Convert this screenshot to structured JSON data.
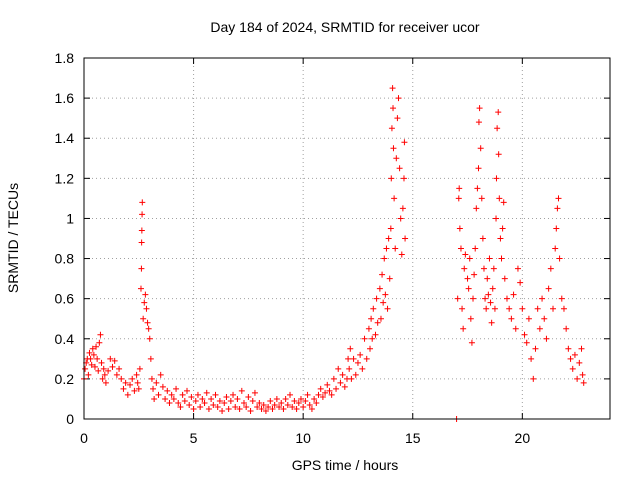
{
  "chart_data": {
    "type": "scatter",
    "title": "Day 184 of 2024, SRMTID for receiver ucor",
    "xlabel": "GPS time / hours",
    "ylabel": "SRMTID / TECUs",
    "xlim": [
      0,
      24
    ],
    "ylim": [
      0,
      1.8
    ],
    "xticks": [
      0,
      5,
      10,
      15,
      20
    ],
    "xtick_labels": [
      "0",
      "5",
      "10",
      "15",
      "20"
    ],
    "yticks": [
      0,
      0.2,
      0.4,
      0.6,
      0.8,
      1,
      1.2,
      1.4,
      1.6,
      1.8
    ],
    "ytick_labels": [
      "0",
      "0.2",
      "0.4",
      "0.6",
      "0.8",
      "1",
      "1.2",
      "1.4",
      "1.6",
      "1.8"
    ],
    "grid": true,
    "marker": "+",
    "series": [
      {
        "name": "SRMTID",
        "color": "#ff0000",
        "points": [
          [
            0.0,
            0.2
          ],
          [
            0.05,
            0.25
          ],
          [
            0.1,
            0.28
          ],
          [
            0.15,
            0.3
          ],
          [
            0.2,
            0.22
          ],
          [
            0.25,
            0.33
          ],
          [
            0.3,
            0.3
          ],
          [
            0.35,
            0.27
          ],
          [
            0.4,
            0.35
          ],
          [
            0.45,
            0.32
          ],
          [
            0.5,
            0.26
          ],
          [
            0.55,
            0.36
          ],
          [
            0.6,
            0.3
          ],
          [
            0.65,
            0.24
          ],
          [
            0.7,
            0.38
          ],
          [
            0.75,
            0.42
          ],
          [
            0.8,
            0.28
          ],
          [
            0.85,
            0.2
          ],
          [
            0.9,
            0.25
          ],
          [
            0.95,
            0.22
          ],
          [
            1.0,
            0.18
          ],
          [
            1.1,
            0.24
          ],
          [
            1.2,
            0.3
          ],
          [
            1.3,
            0.26
          ],
          [
            1.4,
            0.29
          ],
          [
            1.5,
            0.22
          ],
          [
            1.6,
            0.25
          ],
          [
            1.7,
            0.2
          ],
          [
            1.8,
            0.15
          ],
          [
            1.9,
            0.18
          ],
          [
            2.0,
            0.12
          ],
          [
            2.1,
            0.17
          ],
          [
            2.2,
            0.2
          ],
          [
            2.3,
            0.14
          ],
          [
            2.4,
            0.22
          ],
          [
            2.45,
            0.18
          ],
          [
            2.5,
            0.15
          ],
          [
            2.55,
            0.25
          ],
          [
            2.6,
            0.65
          ],
          [
            2.62,
            0.75
          ],
          [
            2.63,
            0.88
          ],
          [
            2.64,
            0.94
          ],
          [
            2.65,
            1.02
          ],
          [
            2.66,
            1.08
          ],
          [
            2.7,
            0.5
          ],
          [
            2.75,
            0.58
          ],
          [
            2.8,
            0.62
          ],
          [
            2.85,
            0.55
          ],
          [
            2.9,
            0.48
          ],
          [
            2.95,
            0.45
          ],
          [
            3.0,
            0.4
          ],
          [
            3.05,
            0.3
          ],
          [
            3.1,
            0.2
          ],
          [
            3.15,
            0.15
          ],
          [
            3.2,
            0.1
          ],
          [
            3.3,
            0.18
          ],
          [
            3.4,
            0.12
          ],
          [
            3.5,
            0.22
          ],
          [
            3.6,
            0.16
          ],
          [
            3.7,
            0.1
          ],
          [
            3.8,
            0.14
          ],
          [
            3.9,
            0.08
          ],
          [
            4.0,
            0.12
          ],
          [
            4.1,
            0.1
          ],
          [
            4.2,
            0.15
          ],
          [
            4.3,
            0.08
          ],
          [
            4.4,
            0.06
          ],
          [
            4.5,
            0.12
          ],
          [
            4.6,
            0.09
          ],
          [
            4.7,
            0.14
          ],
          [
            4.8,
            0.07
          ],
          [
            4.9,
            0.11
          ],
          [
            5.0,
            0.05
          ],
          [
            5.1,
            0.09
          ],
          [
            5.2,
            0.12
          ],
          [
            5.3,
            0.06
          ],
          [
            5.4,
            0.1
          ],
          [
            5.5,
            0.08
          ],
          [
            5.6,
            0.13
          ],
          [
            5.7,
            0.05
          ],
          [
            5.8,
            0.1
          ],
          [
            5.9,
            0.07
          ],
          [
            6.0,
            0.12
          ],
          [
            6.1,
            0.06
          ],
          [
            6.2,
            0.09
          ],
          [
            6.3,
            0.04
          ],
          [
            6.4,
            0.08
          ],
          [
            6.5,
            0.11
          ],
          [
            6.6,
            0.05
          ],
          [
            6.7,
            0.09
          ],
          [
            6.8,
            0.12
          ],
          [
            6.9,
            0.06
          ],
          [
            7.0,
            0.1
          ],
          [
            7.1,
            0.05
          ],
          [
            7.2,
            0.14
          ],
          [
            7.3,
            0.08
          ],
          [
            7.4,
            0.06
          ],
          [
            7.5,
            0.11
          ],
          [
            7.6,
            0.04
          ],
          [
            7.7,
            0.09
          ],
          [
            7.8,
            0.13
          ],
          [
            7.9,
            0.06
          ],
          [
            8.0,
            0.08
          ],
          [
            8.1,
            0.05
          ],
          [
            8.2,
            0.07
          ],
          [
            8.3,
            0.04
          ],
          [
            8.4,
            0.06
          ],
          [
            8.5,
            0.09
          ],
          [
            8.6,
            0.05
          ],
          [
            8.7,
            0.07
          ],
          [
            8.8,
            0.1
          ],
          [
            8.9,
            0.06
          ],
          [
            9.0,
            0.08
          ],
          [
            9.1,
            0.05
          ],
          [
            9.2,
            0.1
          ],
          [
            9.3,
            0.07
          ],
          [
            9.4,
            0.12
          ],
          [
            9.5,
            0.06
          ],
          [
            9.6,
            0.09
          ],
          [
            9.7,
            0.05
          ],
          [
            9.8,
            0.08
          ],
          [
            9.9,
            0.1
          ],
          [
            10.0,
            0.06
          ],
          [
            10.1,
            0.09
          ],
          [
            10.2,
            0.12
          ],
          [
            10.3,
            0.07
          ],
          [
            10.4,
            0.05
          ],
          [
            10.5,
            0.1
          ],
          [
            10.6,
            0.08
          ],
          [
            10.7,
            0.12
          ],
          [
            10.8,
            0.15
          ],
          [
            10.9,
            0.11
          ],
          [
            11.0,
            0.13
          ],
          [
            11.1,
            0.17
          ],
          [
            11.2,
            0.14
          ],
          [
            11.3,
            0.12
          ],
          [
            11.4,
            0.2
          ],
          [
            11.5,
            0.15
          ],
          [
            11.6,
            0.25
          ],
          [
            11.7,
            0.18
          ],
          [
            11.8,
            0.22
          ],
          [
            11.9,
            0.16
          ],
          [
            12.0,
            0.2
          ],
          [
            12.05,
            0.3
          ],
          [
            12.1,
            0.25
          ],
          [
            12.15,
            0.35
          ],
          [
            12.2,
            0.2
          ],
          [
            12.3,
            0.3
          ],
          [
            12.4,
            0.22
          ],
          [
            12.5,
            0.28
          ],
          [
            12.6,
            0.32
          ],
          [
            12.7,
            0.25
          ],
          [
            12.8,
            0.4
          ],
          [
            12.9,
            0.3
          ],
          [
            13.0,
            0.45
          ],
          [
            13.05,
            0.35
          ],
          [
            13.1,
            0.5
          ],
          [
            13.15,
            0.4
          ],
          [
            13.2,
            0.55
          ],
          [
            13.3,
            0.42
          ],
          [
            13.35,
            0.6
          ],
          [
            13.4,
            0.48
          ],
          [
            13.5,
            0.65
          ],
          [
            13.55,
            0.5
          ],
          [
            13.6,
            0.72
          ],
          [
            13.65,
            0.58
          ],
          [
            13.7,
            0.8
          ],
          [
            13.75,
            0.62
          ],
          [
            13.8,
            0.85
          ],
          [
            13.85,
            0.55
          ],
          [
            13.9,
            0.9
          ],
          [
            13.95,
            0.7
          ],
          [
            14.0,
            0.95
          ],
          [
            14.02,
            1.2
          ],
          [
            14.05,
            1.45
          ],
          [
            14.08,
            1.65
          ],
          [
            14.1,
            1.55
          ],
          [
            14.12,
            1.35
          ],
          [
            14.15,
            1.1
          ],
          [
            14.2,
            0.85
          ],
          [
            14.25,
            1.3
          ],
          [
            14.3,
            1.5
          ],
          [
            14.35,
            1.6
          ],
          [
            14.4,
            1.25
          ],
          [
            14.45,
            1.0
          ],
          [
            14.5,
            0.82
          ],
          [
            14.55,
            1.05
          ],
          [
            14.6,
            1.2
          ],
          [
            14.62,
            1.38
          ],
          [
            14.65,
            0.9
          ],
          [
            17.0,
            0.0
          ],
          [
            17.05,
            0.6
          ],
          [
            17.1,
            1.1
          ],
          [
            17.12,
            1.15
          ],
          [
            17.15,
            0.95
          ],
          [
            17.2,
            0.85
          ],
          [
            17.25,
            0.55
          ],
          [
            17.3,
            0.45
          ],
          [
            17.35,
            0.75
          ],
          [
            17.4,
            0.82
          ],
          [
            17.5,
            0.7
          ],
          [
            17.55,
            0.65
          ],
          [
            17.6,
            0.8
          ],
          [
            17.65,
            0.5
          ],
          [
            17.7,
            0.38
          ],
          [
            17.75,
            0.6
          ],
          [
            17.8,
            0.72
          ],
          [
            17.85,
            0.85
          ],
          [
            17.9,
            1.05
          ],
          [
            17.95,
            1.15
          ],
          [
            18.0,
            1.25
          ],
          [
            18.02,
            1.48
          ],
          [
            18.05,
            1.55
          ],
          [
            18.1,
            1.35
          ],
          [
            18.15,
            1.1
          ],
          [
            18.2,
            0.9
          ],
          [
            18.25,
            0.75
          ],
          [
            18.3,
            0.6
          ],
          [
            18.35,
            0.55
          ],
          [
            18.4,
            0.7
          ],
          [
            18.45,
            0.62
          ],
          [
            18.5,
            0.8
          ],
          [
            18.55,
            0.58
          ],
          [
            18.6,
            0.48
          ],
          [
            18.65,
            0.65
          ],
          [
            18.7,
            0.75
          ],
          [
            18.75,
            0.55
          ],
          [
            18.8,
            1.0
          ],
          [
            18.82,
            1.2
          ],
          [
            18.85,
            1.45
          ],
          [
            18.9,
            1.53
          ],
          [
            18.92,
            1.32
          ],
          [
            18.95,
            1.1
          ],
          [
            19.0,
            0.9
          ],
          [
            19.05,
            0.8
          ],
          [
            19.1,
            0.95
          ],
          [
            19.15,
            1.08
          ],
          [
            19.2,
            0.7
          ],
          [
            19.3,
            0.6
          ],
          [
            19.4,
            0.55
          ],
          [
            19.5,
            0.5
          ],
          [
            19.6,
            0.62
          ],
          [
            19.7,
            0.45
          ],
          [
            19.8,
            0.75
          ],
          [
            19.9,
            0.68
          ],
          [
            20.0,
            0.55
          ],
          [
            20.1,
            0.42
          ],
          [
            20.2,
            0.38
          ],
          [
            20.3,
            0.5
          ],
          [
            20.4,
            0.3
          ],
          [
            20.5,
            0.2
          ],
          [
            20.6,
            0.35
          ],
          [
            20.7,
            0.55
          ],
          [
            20.8,
            0.45
          ],
          [
            20.9,
            0.6
          ],
          [
            21.0,
            0.5
          ],
          [
            21.1,
            0.4
          ],
          [
            21.2,
            0.65
          ],
          [
            21.3,
            0.75
          ],
          [
            21.4,
            0.55
          ],
          [
            21.5,
            0.85
          ],
          [
            21.55,
            0.95
          ],
          [
            21.6,
            1.05
          ],
          [
            21.65,
            1.1
          ],
          [
            21.7,
            0.8
          ],
          [
            21.8,
            0.6
          ],
          [
            21.9,
            0.55
          ],
          [
            22.0,
            0.45
          ],
          [
            22.1,
            0.35
          ],
          [
            22.2,
            0.3
          ],
          [
            22.3,
            0.25
          ],
          [
            22.4,
            0.32
          ],
          [
            22.5,
            0.2
          ],
          [
            22.6,
            0.28
          ],
          [
            22.7,
            0.35
          ],
          [
            22.75,
            0.22
          ],
          [
            22.8,
            0.18
          ]
        ]
      }
    ]
  }
}
